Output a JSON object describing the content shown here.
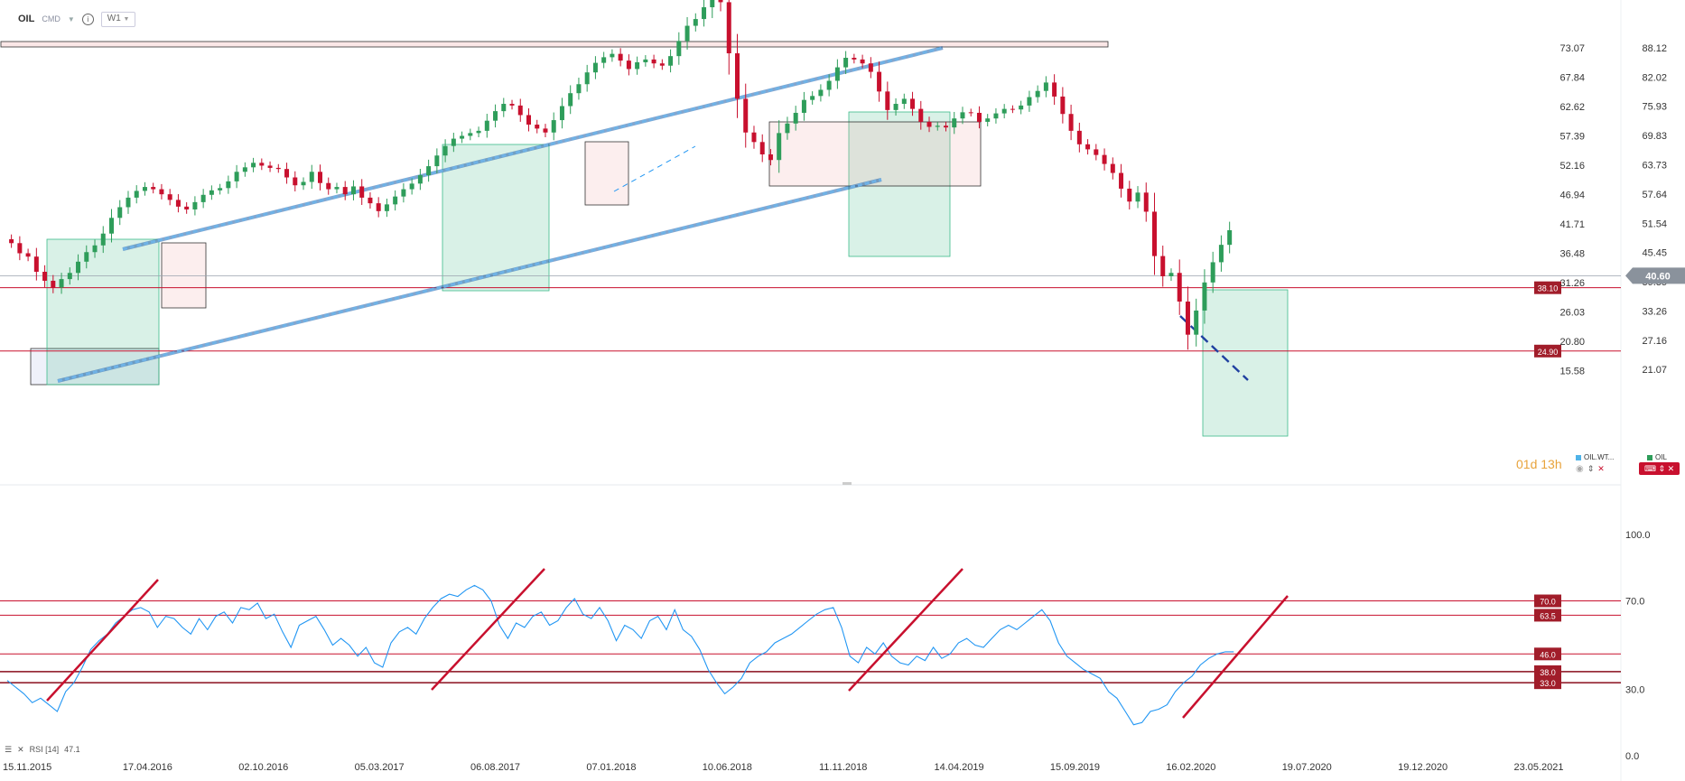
{
  "toolbar": {
    "symbol": "OIL",
    "type": "CMD",
    "timeframe": "W1"
  },
  "timer": {
    "days": "01",
    "d": "d",
    "hours": "13",
    "h": "h"
  },
  "legend": {
    "oil_wti": "OIL.WT...",
    "oil": "OIL",
    "oil_wti_color": "#4fb3e8",
    "oil_color": "#2e9d5a"
  },
  "chart_data": [
    {
      "type": "candlestick",
      "title": "",
      "y_left_ticks": [
        73.07,
        67.84,
        62.62,
        57.39,
        52.16,
        46.94,
        41.71,
        36.48,
        31.26,
        26.03,
        20.8,
        15.58
      ],
      "y_right_ticks": [
        88.12,
        82.02,
        75.93,
        69.83,
        63.73,
        57.64,
        51.54,
        45.45,
        39.35,
        33.26,
        27.16,
        21.07
      ],
      "current_price": "40.60",
      "level_labels": [
        "38.10",
        "24.90"
      ],
      "levels": [
        38.1,
        24.9
      ],
      "up_color": "#2e9d5a",
      "down_color": "#c8102e",
      "closes": [
        [
          0,
          39.0
        ],
        [
          2,
          38.3
        ],
        [
          4,
          36.5
        ],
        [
          6,
          35.9
        ],
        [
          8,
          33.2
        ],
        [
          10,
          31.6
        ],
        [
          12,
          30.4
        ],
        [
          14,
          31.9
        ],
        [
          16,
          33.0
        ],
        [
          18,
          35.0
        ],
        [
          20,
          36.7
        ],
        [
          22,
          37.9
        ],
        [
          24,
          40.0
        ],
        [
          26,
          42.8
        ],
        [
          28,
          44.7
        ],
        [
          30,
          46.4
        ],
        [
          32,
          47.6
        ],
        [
          34,
          48.3
        ],
        [
          36,
          47.9
        ],
        [
          38,
          47.0
        ],
        [
          40,
          46.0
        ],
        [
          42,
          44.8
        ],
        [
          44,
          44.3
        ],
        [
          46,
          45.6
        ],
        [
          48,
          46.9
        ],
        [
          50,
          47.7
        ],
        [
          52,
          48.1
        ],
        [
          54,
          49.3
        ],
        [
          56,
          51.0
        ],
        [
          58,
          51.8
        ],
        [
          60,
          52.6
        ],
        [
          62,
          52.1
        ],
        [
          64,
          51.7
        ],
        [
          66,
          51.5
        ],
        [
          68,
          50.0
        ],
        [
          70,
          48.6
        ],
        [
          72,
          49.2
        ],
        [
          74,
          51.0
        ],
        [
          76,
          49.0
        ],
        [
          78,
          47.9
        ],
        [
          80,
          48.3
        ],
        [
          82,
          47.0
        ],
        [
          84,
          48.4
        ],
        [
          86,
          46.4
        ],
        [
          88,
          45.4
        ],
        [
          90,
          44.0
        ],
        [
          92,
          45.2
        ],
        [
          94,
          46.6
        ],
        [
          96,
          47.9
        ],
        [
          98,
          48.9
        ],
        [
          100,
          50.4
        ],
        [
          102,
          52.0
        ],
        [
          104,
          53.9
        ],
        [
          106,
          55.6
        ],
        [
          108,
          56.9
        ],
        [
          110,
          57.4
        ],
        [
          112,
          57.9
        ],
        [
          114,
          58.3
        ],
        [
          116,
          60.1
        ],
        [
          118,
          61.8
        ],
        [
          120,
          63.1
        ],
        [
          122,
          62.8
        ],
        [
          124,
          61.1
        ],
        [
          126,
          59.4
        ],
        [
          128,
          58.7
        ],
        [
          130,
          58.0
        ],
        [
          132,
          60.2
        ],
        [
          134,
          62.7
        ],
        [
          136,
          65.0
        ],
        [
          138,
          66.6
        ],
        [
          140,
          68.7
        ],
        [
          142,
          70.4
        ],
        [
          144,
          71.4
        ],
        [
          146,
          72.0
        ],
        [
          148,
          70.8
        ],
        [
          150,
          69.3
        ],
        [
          152,
          70.5
        ],
        [
          154,
          71.0
        ],
        [
          156,
          70.3
        ],
        [
          158,
          69.9
        ],
        [
          160,
          71.6
        ],
        [
          162,
          74.3
        ],
        [
          164,
          77.0
        ],
        [
          166,
          78.2
        ],
        [
          168,
          80.3
        ],
        [
          170,
          84.1
        ],
        [
          172,
          81.2
        ],
        [
          174,
          72.1
        ],
        [
          176,
          64.0
        ],
        [
          178,
          58.0
        ],
        [
          180,
          56.3
        ],
        [
          182,
          54.1
        ],
        [
          184,
          53.1
        ],
        [
          186,
          57.9
        ],
        [
          188,
          59.6
        ],
        [
          190,
          61.5
        ],
        [
          192,
          63.8
        ],
        [
          194,
          64.5
        ],
        [
          196,
          65.6
        ],
        [
          198,
          67.2
        ],
        [
          200,
          69.6
        ],
        [
          202,
          71.3
        ],
        [
          204,
          71.0
        ],
        [
          206,
          70.3
        ],
        [
          208,
          68.8
        ],
        [
          210,
          65.3
        ],
        [
          212,
          62.0
        ],
        [
          214,
          63.1
        ],
        [
          216,
          64.0
        ],
        [
          218,
          62.2
        ],
        [
          220,
          59.9
        ],
        [
          222,
          59.0
        ],
        [
          224,
          59.2
        ],
        [
          226,
          58.9
        ],
        [
          228,
          60.5
        ],
        [
          230,
          61.6
        ],
        [
          232,
          61.5
        ],
        [
          234,
          59.9
        ],
        [
          236,
          60.5
        ],
        [
          238,
          61.4
        ],
        [
          240,
          62.2
        ],
        [
          242,
          62.1
        ],
        [
          244,
          62.8
        ],
        [
          246,
          64.3
        ],
        [
          248,
          65.4
        ],
        [
          250,
          66.9
        ],
        [
          252,
          64.4
        ],
        [
          254,
          61.3
        ],
        [
          256,
          58.3
        ],
        [
          258,
          55.9
        ],
        [
          260,
          55.0
        ],
        [
          262,
          54.0
        ],
        [
          264,
          52.4
        ],
        [
          266,
          50.8
        ],
        [
          268,
          48.0
        ],
        [
          270,
          45.7
        ],
        [
          272,
          47.3
        ],
        [
          274,
          43.9
        ],
        [
          276,
          36.0
        ],
        [
          278,
          32.4
        ],
        [
          280,
          33.0
        ],
        [
          282,
          27.9
        ],
        [
          284,
          22.0
        ],
        [
          286,
          26.3
        ],
        [
          288,
          31.3
        ],
        [
          290,
          34.9
        ],
        [
          292,
          38.0
        ],
        [
          294,
          40.6
        ]
      ]
    },
    {
      "type": "line",
      "title": "",
      "indicator_label": "RSI [14]",
      "indicator_value": "47.1",
      "series_color": "#2196f3",
      "y_ticks": [
        100.0,
        70.0,
        30.0,
        0.0
      ],
      "levels": [
        70.0,
        63.5,
        46.0,
        38.0,
        33.0
      ],
      "level_labels": [
        "70.0",
        "63.5",
        "46.0",
        "38.0",
        "33.0"
      ],
      "x_tick_labels": [
        "15.11.2015",
        "17.04.2016",
        "02.10.2016",
        "05.03.2017",
        "06.08.2017",
        "07.01.2018",
        "10.06.2018",
        "11.11.2018",
        "14.04.2019",
        "15.09.2019",
        "16.02.2020",
        "19.07.2020",
        "19.12.2020",
        "23.05.2021"
      ],
      "values": [
        [
          0,
          34
        ],
        [
          2,
          31
        ],
        [
          4,
          28
        ],
        [
          6,
          24
        ],
        [
          8,
          26
        ],
        [
          10,
          23
        ],
        [
          12,
          20
        ],
        [
          14,
          29
        ],
        [
          16,
          33
        ],
        [
          18,
          40
        ],
        [
          20,
          48
        ],
        [
          22,
          52
        ],
        [
          24,
          55
        ],
        [
          26,
          60
        ],
        [
          28,
          63
        ],
        [
          30,
          66
        ],
        [
          32,
          67
        ],
        [
          34,
          65
        ],
        [
          36,
          58
        ],
        [
          38,
          63
        ],
        [
          40,
          62
        ],
        [
          42,
          58
        ],
        [
          44,
          55
        ],
        [
          46,
          62
        ],
        [
          48,
          57
        ],
        [
          50,
          63
        ],
        [
          52,
          65
        ],
        [
          54,
          60
        ],
        [
          56,
          67
        ],
        [
          58,
          66
        ],
        [
          60,
          69
        ],
        [
          62,
          62
        ],
        [
          64,
          64
        ],
        [
          66,
          56
        ],
        [
          68,
          49
        ],
        [
          70,
          59
        ],
        [
          72,
          61
        ],
        [
          74,
          63
        ],
        [
          76,
          57
        ],
        [
          78,
          50
        ],
        [
          80,
          53
        ],
        [
          82,
          50
        ],
        [
          84,
          45
        ],
        [
          86,
          49
        ],
        [
          88,
          42
        ],
        [
          90,
          40
        ],
        [
          92,
          51
        ],
        [
          94,
          56
        ],
        [
          96,
          58
        ],
        [
          98,
          55
        ],
        [
          100,
          62
        ],
        [
          102,
          67
        ],
        [
          104,
          71
        ],
        [
          106,
          73
        ],
        [
          108,
          72
        ],
        [
          110,
          75
        ],
        [
          112,
          77
        ],
        [
          114,
          75
        ],
        [
          116,
          70
        ],
        [
          118,
          59
        ],
        [
          120,
          53
        ],
        [
          122,
          60
        ],
        [
          124,
          58
        ],
        [
          126,
          63
        ],
        [
          128,
          65
        ],
        [
          130,
          59
        ],
        [
          132,
          61
        ],
        [
          134,
          67
        ],
        [
          136,
          71
        ],
        [
          138,
          64
        ],
        [
          140,
          62
        ],
        [
          142,
          67
        ],
        [
          144,
          61
        ],
        [
          146,
          52
        ],
        [
          148,
          59
        ],
        [
          150,
          57
        ],
        [
          152,
          53
        ],
        [
          154,
          61
        ],
        [
          156,
          63
        ],
        [
          158,
          57
        ],
        [
          160,
          66
        ],
        [
          162,
          57
        ],
        [
          164,
          54
        ],
        [
          166,
          48
        ],
        [
          168,
          39
        ],
        [
          170,
          33
        ],
        [
          172,
          28
        ],
        [
          174,
          31
        ],
        [
          176,
          35
        ],
        [
          178,
          42
        ],
        [
          180,
          45
        ],
        [
          182,
          47
        ],
        [
          184,
          51
        ],
        [
          186,
          53
        ],
        [
          188,
          55
        ],
        [
          190,
          58
        ],
        [
          192,
          61
        ],
        [
          194,
          64
        ],
        [
          196,
          66
        ],
        [
          198,
          67
        ],
        [
          200,
          58
        ],
        [
          202,
          45
        ],
        [
          204,
          42
        ],
        [
          206,
          49
        ],
        [
          208,
          46
        ],
        [
          210,
          51
        ],
        [
          212,
          45
        ],
        [
          214,
          42
        ],
        [
          216,
          41
        ],
        [
          218,
          45
        ],
        [
          220,
          43
        ],
        [
          222,
          49
        ],
        [
          224,
          44
        ],
        [
          226,
          46
        ],
        [
          228,
          51
        ],
        [
          230,
          53
        ],
        [
          232,
          50
        ],
        [
          234,
          49
        ],
        [
          236,
          53
        ],
        [
          238,
          57
        ],
        [
          240,
          59
        ],
        [
          242,
          57
        ],
        [
          244,
          60
        ],
        [
          246,
          63
        ],
        [
          248,
          66
        ],
        [
          250,
          61
        ],
        [
          252,
          51
        ],
        [
          254,
          45
        ],
        [
          256,
          42
        ],
        [
          258,
          39
        ],
        [
          260,
          37
        ],
        [
          262,
          35
        ],
        [
          264,
          29
        ],
        [
          266,
          26
        ],
        [
          268,
          20
        ],
        [
          270,
          14
        ],
        [
          272,
          15
        ],
        [
          274,
          20
        ],
        [
          276,
          21
        ],
        [
          278,
          23
        ],
        [
          280,
          29
        ],
        [
          282,
          33
        ],
        [
          284,
          36
        ],
        [
          286,
          41
        ],
        [
          288,
          44
        ],
        [
          290,
          46
        ],
        [
          292,
          47
        ],
        [
          294,
          47
        ]
      ]
    }
  ]
}
